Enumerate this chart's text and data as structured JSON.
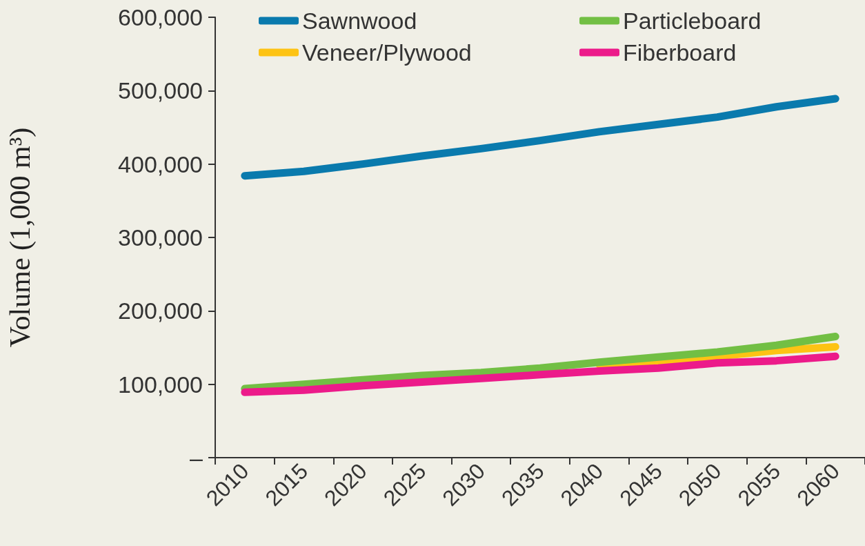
{
  "chart_data": {
    "type": "line",
    "ylabel": "Volume (1,000 m³)",
    "categories": [
      "2010",
      "2015",
      "2020",
      "2025",
      "2030",
      "2035",
      "2040",
      "2045",
      "2050",
      "2055",
      "2060"
    ],
    "series": [
      {
        "name": "Sawnwood",
        "color": "#0a7aad",
        "values": [
          384000,
          390000,
          400000,
          411000,
          421000,
          432000,
          444000,
          454000,
          464000,
          478000,
          489000
        ]
      },
      {
        "name": "Veneer/Plywood",
        "color": "#fdc314",
        "values": [
          null,
          null,
          null,
          null,
          null,
          null,
          127000,
          132000,
          138000,
          146000,
          151000
        ]
      },
      {
        "name": "Particleboard",
        "color": "#72bf44",
        "values": [
          94000,
          100000,
          106000,
          112000,
          116000,
          122000,
          130000,
          137000,
          144000,
          153000,
          165000
        ]
      },
      {
        "name": "Fiberboard",
        "color": "#ec1b8a",
        "values": [
          89000,
          92000,
          98000,
          103000,
          108000,
          113000,
          118000,
          122000,
          129000,
          132000,
          138000
        ]
      }
    ],
    "ylim": [
      0,
      600000
    ],
    "yticks": [
      {
        "value": 0,
        "label": "–"
      },
      {
        "value": 100000,
        "label": "100,000"
      },
      {
        "value": 200000,
        "label": "200,000"
      },
      {
        "value": 300000,
        "label": "300,000"
      },
      {
        "value": 400000,
        "label": "400,000"
      },
      {
        "value": 500000,
        "label": "500,000"
      },
      {
        "value": 600000,
        "label": "600,000"
      }
    ],
    "grid": false,
    "legend": "top",
    "marker": "none",
    "line_style": "solid"
  }
}
